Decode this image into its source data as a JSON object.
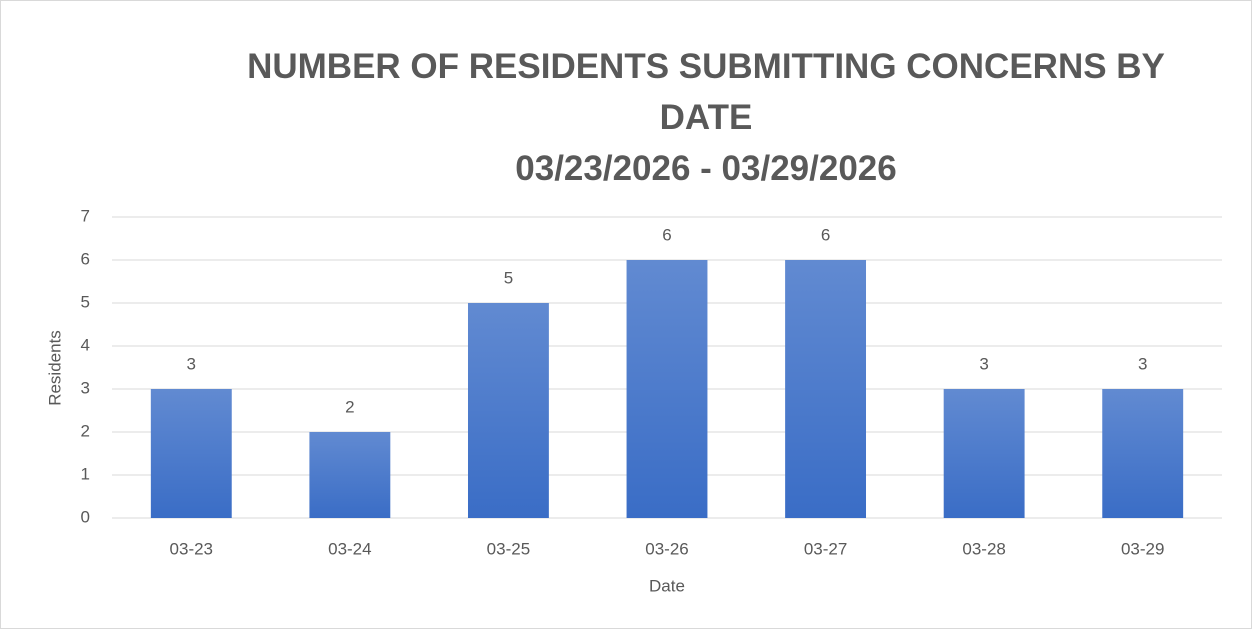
{
  "chart_data": {
    "type": "bar",
    "title": "NUMBER OF RESIDENTS SUBMITTING CONCERNS BY DATE",
    "subtitle": "03/23/2026 - 03/29/2026",
    "x_label": "Date",
    "y_label": "Residents",
    "categories": [
      "03-23",
      "03-24",
      "03-25",
      "03-26",
      "03-27",
      "03-28",
      "03-29"
    ],
    "values": [
      3,
      2,
      5,
      6,
      6,
      3,
      3
    ],
    "color": "#3a6dc6",
    "ylim": [
      0,
      7
    ],
    "yticks": [
      0,
      1,
      2,
      3,
      4,
      5,
      6,
      7
    ],
    "grid": true
  }
}
